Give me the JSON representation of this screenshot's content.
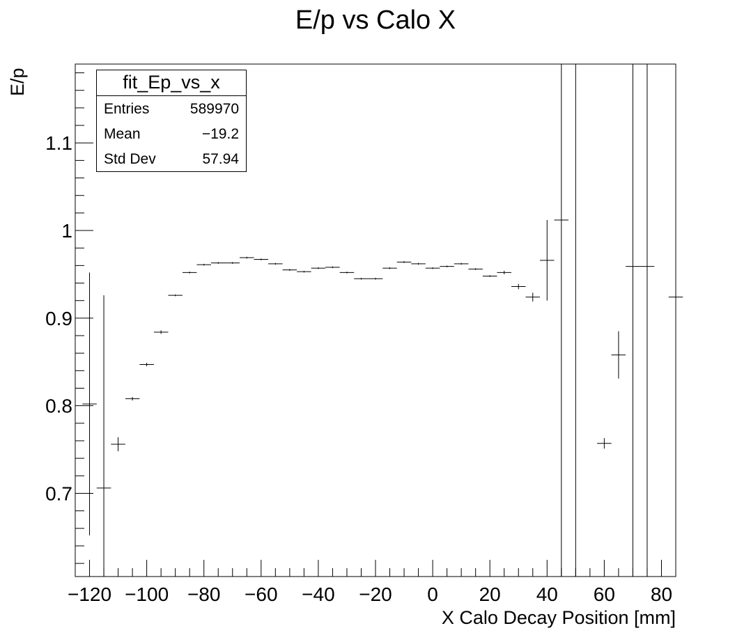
{
  "chart_data": {
    "type": "scatter",
    "title": "E/p vs Calo X",
    "xlabel": "X Calo Decay Position [mm]",
    "ylabel": "E/p",
    "xlim": [
      -125,
      85
    ],
    "ylim": [
      0.605,
      1.19
    ],
    "xticks": [
      -120,
      -100,
      -80,
      -60,
      -40,
      -20,
      0,
      20,
      40,
      60,
      80
    ],
    "yticks": [
      0.7,
      0.8,
      0.9,
      1,
      1.1
    ],
    "bin_width": 5,
    "grid": false,
    "stats": {
      "name": "fit_Ep_vs_x",
      "rows": [
        {
          "label": "Entries",
          "value": "589970"
        },
        {
          "label": "Mean",
          "value": "−19.2"
        },
        {
          "label": "Std Dev",
          "value": "57.94"
        }
      ]
    },
    "series": [
      {
        "x": [
          -120,
          -115,
          -110,
          -105,
          -100,
          -95,
          -90,
          -85,
          -80,
          -75,
          -70,
          -65,
          -60,
          -55,
          -50,
          -45,
          -40,
          -35,
          -30,
          -25,
          -20,
          -15,
          -10,
          -5,
          0,
          5,
          10,
          15,
          20,
          25,
          30,
          35,
          40,
          45,
          50,
          60,
          65,
          70,
          75,
          85
        ],
        "y": [
          0.802,
          0.706,
          0.756,
          0.808,
          0.847,
          0.884,
          0.926,
          0.952,
          0.961,
          0.963,
          0.963,
          0.969,
          0.967,
          0.962,
          0.955,
          0.953,
          0.957,
          0.958,
          0.952,
          0.945,
          0.945,
          0.957,
          0.964,
          0.962,
          0.957,
          0.959,
          0.962,
          0.956,
          0.948,
          0.952,
          0.936,
          0.924,
          0.966,
          1.012,
          1.2,
          0.757,
          0.858,
          0.959,
          0.959,
          0.924
        ],
        "err": [
          0.15,
          0.22,
          0.008,
          0.002,
          0.002,
          0.002,
          0.001,
          0.001,
          0.001,
          0.001,
          0.001,
          0.001,
          0.001,
          0.001,
          0.001,
          0.001,
          0.001,
          0.001,
          0.001,
          0.001,
          0.001,
          0.001,
          0.001,
          0.001,
          0.001,
          0.001,
          0.001,
          0.001,
          0.001,
          0.002,
          0.003,
          0.005,
          0.046,
          0.7,
          0.8,
          0.006,
          0.027,
          0.7,
          0.7,
          0.7
        ]
      }
    ]
  }
}
